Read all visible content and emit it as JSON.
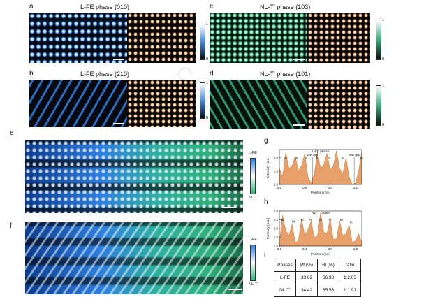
{
  "panels": {
    "a": {
      "label": "a",
      "title": "L-FE phase (010)"
    },
    "b": {
      "label": "b",
      "title": "L-FE phase (210)"
    },
    "c": {
      "label": "c",
      "title": "NL-T' phase (103)"
    },
    "d": {
      "label": "d",
      "title": "NL-T' phase (101)"
    },
    "e": {
      "label": "e",
      "top": "L-FE",
      "bottom": "NL-T'"
    },
    "f": {
      "label": "f",
      "top": "L-FE",
      "bottom": "NL-T'"
    },
    "g": {
      "label": "g"
    },
    "h": {
      "label": "h"
    },
    "i": {
      "label": "i"
    }
  },
  "colorbar": {
    "max": "1",
    "min": "0"
  },
  "colors": {
    "blue": "#2f7fe0",
    "green": "#2fb07a",
    "orange": "#e8a06a",
    "dark": "#05080e"
  },
  "watermark": "CELL",
  "chart_data": [
    {
      "type": "area",
      "title": "L-FE phase",
      "xlabel": "Position (nm)",
      "ylabel": "Intensity (a.u.)",
      "xlim": [
        0.0,
        1.3
      ],
      "ylim": [
        1.0,
        2.3
      ],
      "xticks": [
        "0.0",
        "0.4",
        "0.8",
        "1.2"
      ],
      "yticks": [
        "1.0",
        "1.5",
        "2.0"
      ],
      "x": [
        0.0,
        0.05,
        0.1,
        0.15,
        0.2,
        0.25,
        0.3,
        0.35,
        0.4,
        0.45,
        0.5,
        0.55,
        0.6,
        0.65,
        0.7,
        0.75,
        0.8,
        0.85,
        0.9,
        0.95,
        1.0,
        1.05,
        1.1,
        1.15,
        1.2,
        1.25,
        1.3
      ],
      "values": [
        1.6,
        1.3,
        2.2,
        1.6,
        1.7,
        2.05,
        1.5,
        1.7,
        2.15,
        1.3,
        1.05,
        1.4,
        2.2,
        1.6,
        1.75,
        2.15,
        1.55,
        1.7,
        2.25,
        1.6,
        1.4,
        2.0,
        1.3,
        1.0,
        1.05,
        1.5,
        2.25
      ],
      "annotations": [
        {
          "text": "Bi",
          "x": 0.1,
          "y": 2.3
        },
        {
          "text": "Pt",
          "x": 0.27,
          "y": 2.15
        },
        {
          "text": "Bi",
          "x": 0.42,
          "y": 2.25
        },
        {
          "text": "vdW gap",
          "x": 0.52,
          "y": 2.45
        },
        {
          "text": "Bi",
          "x": 0.6,
          "y": 2.3
        },
        {
          "text": "Pt",
          "x": 0.78,
          "y": 2.25
        },
        {
          "text": "Bi",
          "x": 1.0,
          "y": 2.1
        },
        {
          "text": "vdW gap",
          "x": 1.18,
          "y": 2.45
        },
        {
          "text": "Bi",
          "x": 1.3,
          "y": 2.3
        }
      ]
    },
    {
      "type": "area",
      "title": "NL-T' phase",
      "xlabel": "Position (nm)",
      "ylabel": "Intensity (a.u.)",
      "xlim": [
        0.0,
        1.3
      ],
      "ylim": [
        1.0,
        3.0
      ],
      "xticks": [
        "0.0",
        "0.4",
        "0.8",
        "1.2"
      ],
      "yticks": [
        "1.0",
        "1.5",
        "2.0",
        "2.5",
        "3.0"
      ],
      "x": [
        0.0,
        0.05,
        0.1,
        0.15,
        0.2,
        0.25,
        0.3,
        0.35,
        0.4,
        0.45,
        0.5,
        0.55,
        0.6,
        0.65,
        0.7,
        0.75,
        0.8,
        0.85,
        0.9,
        0.95,
        1.0,
        1.05,
        1.1,
        1.15,
        1.2,
        1.25,
        1.3
      ],
      "values": [
        1.2,
        2.75,
        1.9,
        1.6,
        2.25,
        1.2,
        1.3,
        2.55,
        1.6,
        1.95,
        2.45,
        1.5,
        1.6,
        2.9,
        1.8,
        1.7,
        2.55,
        1.4,
        1.4,
        2.45,
        1.6,
        1.7,
        2.2,
        1.2,
        1.3,
        1.7,
        1.2
      ],
      "annotations": [
        {
          "text": "Bi",
          "x": 0.05,
          "y": 2.85
        },
        {
          "text": "Pt",
          "x": 0.22,
          "y": 2.35
        },
        {
          "text": "Bi",
          "x": 0.36,
          "y": 2.65
        },
        {
          "text": "Pt",
          "x": 0.49,
          "y": 2.55
        },
        {
          "text": "Bi",
          "x": 0.65,
          "y": 3.0
        },
        {
          "text": "Pt",
          "x": 0.8,
          "y": 2.65
        },
        {
          "text": "Bi",
          "x": 0.98,
          "y": 2.55
        },
        {
          "text": "Pt",
          "x": 1.13,
          "y": 2.3
        }
      ]
    },
    {
      "type": "table",
      "columns": [
        "Phases",
        "Pt (%)",
        "Bi (%)",
        "ratio"
      ],
      "rows": [
        [
          "L-FE",
          "33.02",
          "66.98",
          "1:2.03"
        ],
        [
          "NL-T'",
          "34.42",
          "65.58",
          "1:1.91"
        ]
      ]
    }
  ]
}
